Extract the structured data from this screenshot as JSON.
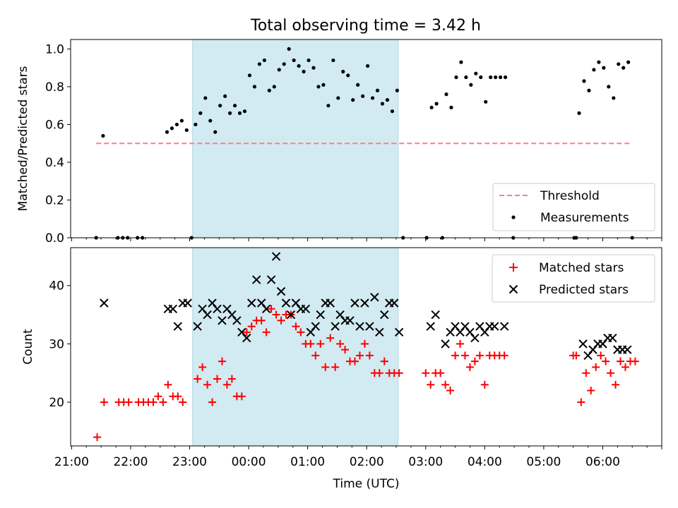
{
  "title": "Total observing time = 3.42 h",
  "colors": {
    "shade": "#add8e6",
    "threshold": "#ff7f7f",
    "matched": "#ff0000",
    "predicted": "#000000"
  },
  "chart_data": [
    {
      "type": "scatter",
      "ylabel": "Matched/Predicted stars",
      "ylim": [
        0,
        1.05
      ],
      "yticks": [
        "0.0",
        "0.2",
        "0.4",
        "0.6",
        "0.8",
        "1.0"
      ],
      "shaded_span": [
        "23:03",
        "02:32"
      ],
      "legend_position": "lower right",
      "threshold": {
        "label": "Threshold",
        "value": 0.5,
        "x": [
          "21:25",
          "06:30"
        ]
      },
      "measurements": {
        "label": "Measurements",
        "points": [
          [
            "21:25",
            0
          ],
          [
            "21:32",
            0.54
          ],
          [
            "21:47",
            0
          ],
          [
            "21:52",
            0
          ],
          [
            "21:57",
            0
          ],
          [
            "22:07",
            0
          ],
          [
            "22:12",
            0
          ],
          [
            "22:37",
            0.56
          ],
          [
            "22:42",
            0.58
          ],
          [
            "22:47",
            0.6
          ],
          [
            "22:52",
            0.62
          ],
          [
            "22:57",
            0.57
          ],
          [
            "23:02",
            0
          ],
          [
            "23:06",
            0.6
          ],
          [
            "23:11",
            0.66
          ],
          [
            "23:16",
            0.74
          ],
          [
            "23:21",
            0.62
          ],
          [
            "23:26",
            0.56
          ],
          [
            "23:31",
            0.7
          ],
          [
            "23:36",
            0.75
          ],
          [
            "23:41",
            0.66
          ],
          [
            "23:46",
            0.7
          ],
          [
            "23:51",
            0.66
          ],
          [
            "23:56",
            0.67
          ],
          [
            "00:01",
            0.86
          ],
          [
            "00:06",
            0.8
          ],
          [
            "00:11",
            0.92
          ],
          [
            "00:16",
            0.94
          ],
          [
            "00:21",
            0.78
          ],
          [
            "00:26",
            0.8
          ],
          [
            "00:31",
            0.89
          ],
          [
            "00:36",
            0.92
          ],
          [
            "00:41",
            1.0
          ],
          [
            "00:46",
            0.94
          ],
          [
            "00:51",
            0.91
          ],
          [
            "00:56",
            0.88
          ],
          [
            "01:01",
            0.94
          ],
          [
            "01:06",
            0.9
          ],
          [
            "01:11",
            0.8
          ],
          [
            "01:16",
            0.81
          ],
          [
            "01:21",
            0.7
          ],
          [
            "01:26",
            0.94
          ],
          [
            "01:31",
            0.74
          ],
          [
            "01:36",
            0.88
          ],
          [
            "01:41",
            0.86
          ],
          [
            "01:46",
            0.73
          ],
          [
            "01:51",
            0.81
          ],
          [
            "01:56",
            0.75
          ],
          [
            "02:01",
            0.91
          ],
          [
            "02:06",
            0.74
          ],
          [
            "02:11",
            0.78
          ],
          [
            "02:16",
            0.71
          ],
          [
            "02:21",
            0.73
          ],
          [
            "02:26",
            0.67
          ],
          [
            "02:31",
            0.78
          ],
          [
            "02:37",
            0
          ],
          [
            "03:01",
            0
          ],
          [
            "03:06",
            0.69
          ],
          [
            "03:11",
            0.71
          ],
          [
            "03:17",
            0
          ],
          [
            "03:21",
            0.76
          ],
          [
            "03:26",
            0.69
          ],
          [
            "03:31",
            0.85
          ],
          [
            "03:36",
            0.93
          ],
          [
            "03:41",
            0.85
          ],
          [
            "03:46",
            0.81
          ],
          [
            "03:51",
            0.87
          ],
          [
            "03:56",
            0.85
          ],
          [
            "04:01",
            0.72
          ],
          [
            "04:06",
            0.85
          ],
          [
            "04:11",
            0.85
          ],
          [
            "04:16",
            0.85
          ],
          [
            "04:21",
            0.85
          ],
          [
            "04:29",
            0
          ],
          [
            "05:31",
            0
          ],
          [
            "05:33",
            0
          ],
          [
            "05:36",
            0.66
          ],
          [
            "05:41",
            0.83
          ],
          [
            "05:46",
            0.78
          ],
          [
            "05:51",
            0.89
          ],
          [
            "05:56",
            0.93
          ],
          [
            "06:01",
            0.9
          ],
          [
            "06:06",
            0.8
          ],
          [
            "06:11",
            0.74
          ],
          [
            "06:16",
            0.92
          ],
          [
            "06:21",
            0.9
          ],
          [
            "06:26",
            0.93
          ],
          [
            "06:30",
            0
          ]
        ]
      },
      "ygrid": false
    },
    {
      "type": "scatter",
      "xlabel": "Time (UTC)",
      "ylabel": "Count",
      "xlim": [
        "20:59",
        "07:00"
      ],
      "ylim": [
        12.5,
        46.5
      ],
      "yticks": [
        "20",
        "30",
        "40"
      ],
      "xticks": [
        "21:00",
        "22:00",
        "23:00",
        "00:00",
        "01:00",
        "02:00",
        "03:00",
        "04:00",
        "05:00",
        "06:00"
      ],
      "shaded_span": [
        "23:03",
        "02:32"
      ],
      "legend_position": "upper right",
      "series": [
        {
          "name": "Matched stars",
          "marker": "+",
          "points": [
            [
              "21:26",
              14
            ],
            [
              "21:33",
              20
            ],
            [
              "21:48",
              20
            ],
            [
              "21:53",
              20
            ],
            [
              "21:58",
              20
            ],
            [
              "22:08",
              20
            ],
            [
              "22:13",
              20
            ],
            [
              "22:18",
              20
            ],
            [
              "22:23",
              20
            ],
            [
              "22:28",
              21
            ],
            [
              "22:33",
              20
            ],
            [
              "22:38",
              23
            ],
            [
              "22:43",
              21
            ],
            [
              "22:48",
              21
            ],
            [
              "22:53",
              20
            ],
            [
              "23:08",
              24
            ],
            [
              "23:13",
              26
            ],
            [
              "23:18",
              23
            ],
            [
              "23:23",
              20
            ],
            [
              "23:28",
              24
            ],
            [
              "23:33",
              27
            ],
            [
              "23:38",
              23
            ],
            [
              "23:43",
              24
            ],
            [
              "23:48",
              21
            ],
            [
              "23:53",
              21
            ],
            [
              "23:58",
              32
            ],
            [
              "00:03",
              33
            ],
            [
              "00:08",
              34
            ],
            [
              "00:13",
              34
            ],
            [
              "00:18",
              32
            ],
            [
              "00:23",
              36
            ],
            [
              "00:28",
              35
            ],
            [
              "00:33",
              34
            ],
            [
              "00:38",
              35
            ],
            [
              "00:43",
              35
            ],
            [
              "00:48",
              33
            ],
            [
              "00:53",
              32
            ],
            [
              "00:58",
              30
            ],
            [
              "01:03",
              30
            ],
            [
              "01:08",
              28
            ],
            [
              "01:13",
              30
            ],
            [
              "01:18",
              26
            ],
            [
              "01:23",
              31
            ],
            [
              "01:28",
              26
            ],
            [
              "01:33",
              30
            ],
            [
              "01:38",
              29
            ],
            [
              "01:43",
              27
            ],
            [
              "01:48",
              27
            ],
            [
              "01:53",
              28
            ],
            [
              "01:58",
              30
            ],
            [
              "02:03",
              28
            ],
            [
              "02:08",
              25
            ],
            [
              "02:13",
              25
            ],
            [
              "02:18",
              27
            ],
            [
              "02:23",
              25
            ],
            [
              "02:28",
              25
            ],
            [
              "02:33",
              25
            ],
            [
              "03:00",
              25
            ],
            [
              "03:05",
              23
            ],
            [
              "03:10",
              25
            ],
            [
              "03:15",
              25
            ],
            [
              "03:20",
              23
            ],
            [
              "03:25",
              22
            ],
            [
              "03:30",
              28
            ],
            [
              "03:35",
              30
            ],
            [
              "03:40",
              28
            ],
            [
              "03:45",
              26
            ],
            [
              "03:50",
              27
            ],
            [
              "03:55",
              28
            ],
            [
              "04:00",
              23
            ],
            [
              "04:05",
              28
            ],
            [
              "04:10",
              28
            ],
            [
              "04:15",
              28
            ],
            [
              "04:20",
              28
            ],
            [
              "05:30",
              28
            ],
            [
              "05:33",
              28
            ],
            [
              "05:38",
              20
            ],
            [
              "05:43",
              25
            ],
            [
              "05:48",
              22
            ],
            [
              "05:53",
              26
            ],
            [
              "05:58",
              28
            ],
            [
              "06:03",
              27
            ],
            [
              "06:08",
              25
            ],
            [
              "06:13",
              23
            ],
            [
              "06:18",
              27
            ],
            [
              "06:23",
              26
            ],
            [
              "06:28",
              27
            ],
            [
              "06:33",
              27
            ]
          ]
        },
        {
          "name": "Predicted stars",
          "marker": "x",
          "points": [
            [
              "21:33",
              37
            ],
            [
              "22:38",
              36
            ],
            [
              "22:43",
              36
            ],
            [
              "22:48",
              33
            ],
            [
              "22:53",
              37
            ],
            [
              "22:58",
              37
            ],
            [
              "23:08",
              33
            ],
            [
              "23:13",
              36
            ],
            [
              "23:18",
              35
            ],
            [
              "23:23",
              37
            ],
            [
              "23:28",
              36
            ],
            [
              "23:33",
              34
            ],
            [
              "23:38",
              36
            ],
            [
              "23:43",
              35
            ],
            [
              "23:48",
              34
            ],
            [
              "23:53",
              32
            ],
            [
              "23:58",
              31
            ],
            [
              "00:03",
              37
            ],
            [
              "00:08",
              41
            ],
            [
              "00:13",
              37
            ],
            [
              "00:18",
              36
            ],
            [
              "00:23",
              41
            ],
            [
              "00:28",
              45
            ],
            [
              "00:33",
              39
            ],
            [
              "00:38",
              37
            ],
            [
              "00:43",
              35
            ],
            [
              "00:48",
              37
            ],
            [
              "00:53",
              36
            ],
            [
              "00:58",
              36
            ],
            [
              "01:03",
              32
            ],
            [
              "01:08",
              33
            ],
            [
              "01:13",
              35
            ],
            [
              "01:18",
              37
            ],
            [
              "01:23",
              37
            ],
            [
              "01:28",
              33
            ],
            [
              "01:33",
              35
            ],
            [
              "01:38",
              34
            ],
            [
              "01:43",
              34
            ],
            [
              "01:48",
              37
            ],
            [
              "01:53",
              33
            ],
            [
              "01:58",
              37
            ],
            [
              "02:03",
              33
            ],
            [
              "02:08",
              38
            ],
            [
              "02:13",
              32
            ],
            [
              "02:18",
              35
            ],
            [
              "02:23",
              37
            ],
            [
              "02:28",
              37
            ],
            [
              "02:33",
              32
            ],
            [
              "03:05",
              33
            ],
            [
              "03:10",
              35
            ],
            [
              "03:20",
              30
            ],
            [
              "03:25",
              32
            ],
            [
              "03:30",
              33
            ],
            [
              "03:35",
              32
            ],
            [
              "03:40",
              33
            ],
            [
              "03:45",
              32
            ],
            [
              "03:50",
              31
            ],
            [
              "03:55",
              33
            ],
            [
              "04:00",
              32
            ],
            [
              "04:05",
              33
            ],
            [
              "04:10",
              33
            ],
            [
              "04:20",
              33
            ],
            [
              "05:40",
              30
            ],
            [
              "05:45",
              28
            ],
            [
              "05:50",
              29
            ],
            [
              "05:55",
              30
            ],
            [
              "06:00",
              30
            ],
            [
              "06:05",
              31
            ],
            [
              "06:10",
              31
            ],
            [
              "06:15",
              29
            ],
            [
              "06:20",
              29
            ],
            [
              "06:25",
              29
            ]
          ]
        }
      ]
    }
  ]
}
